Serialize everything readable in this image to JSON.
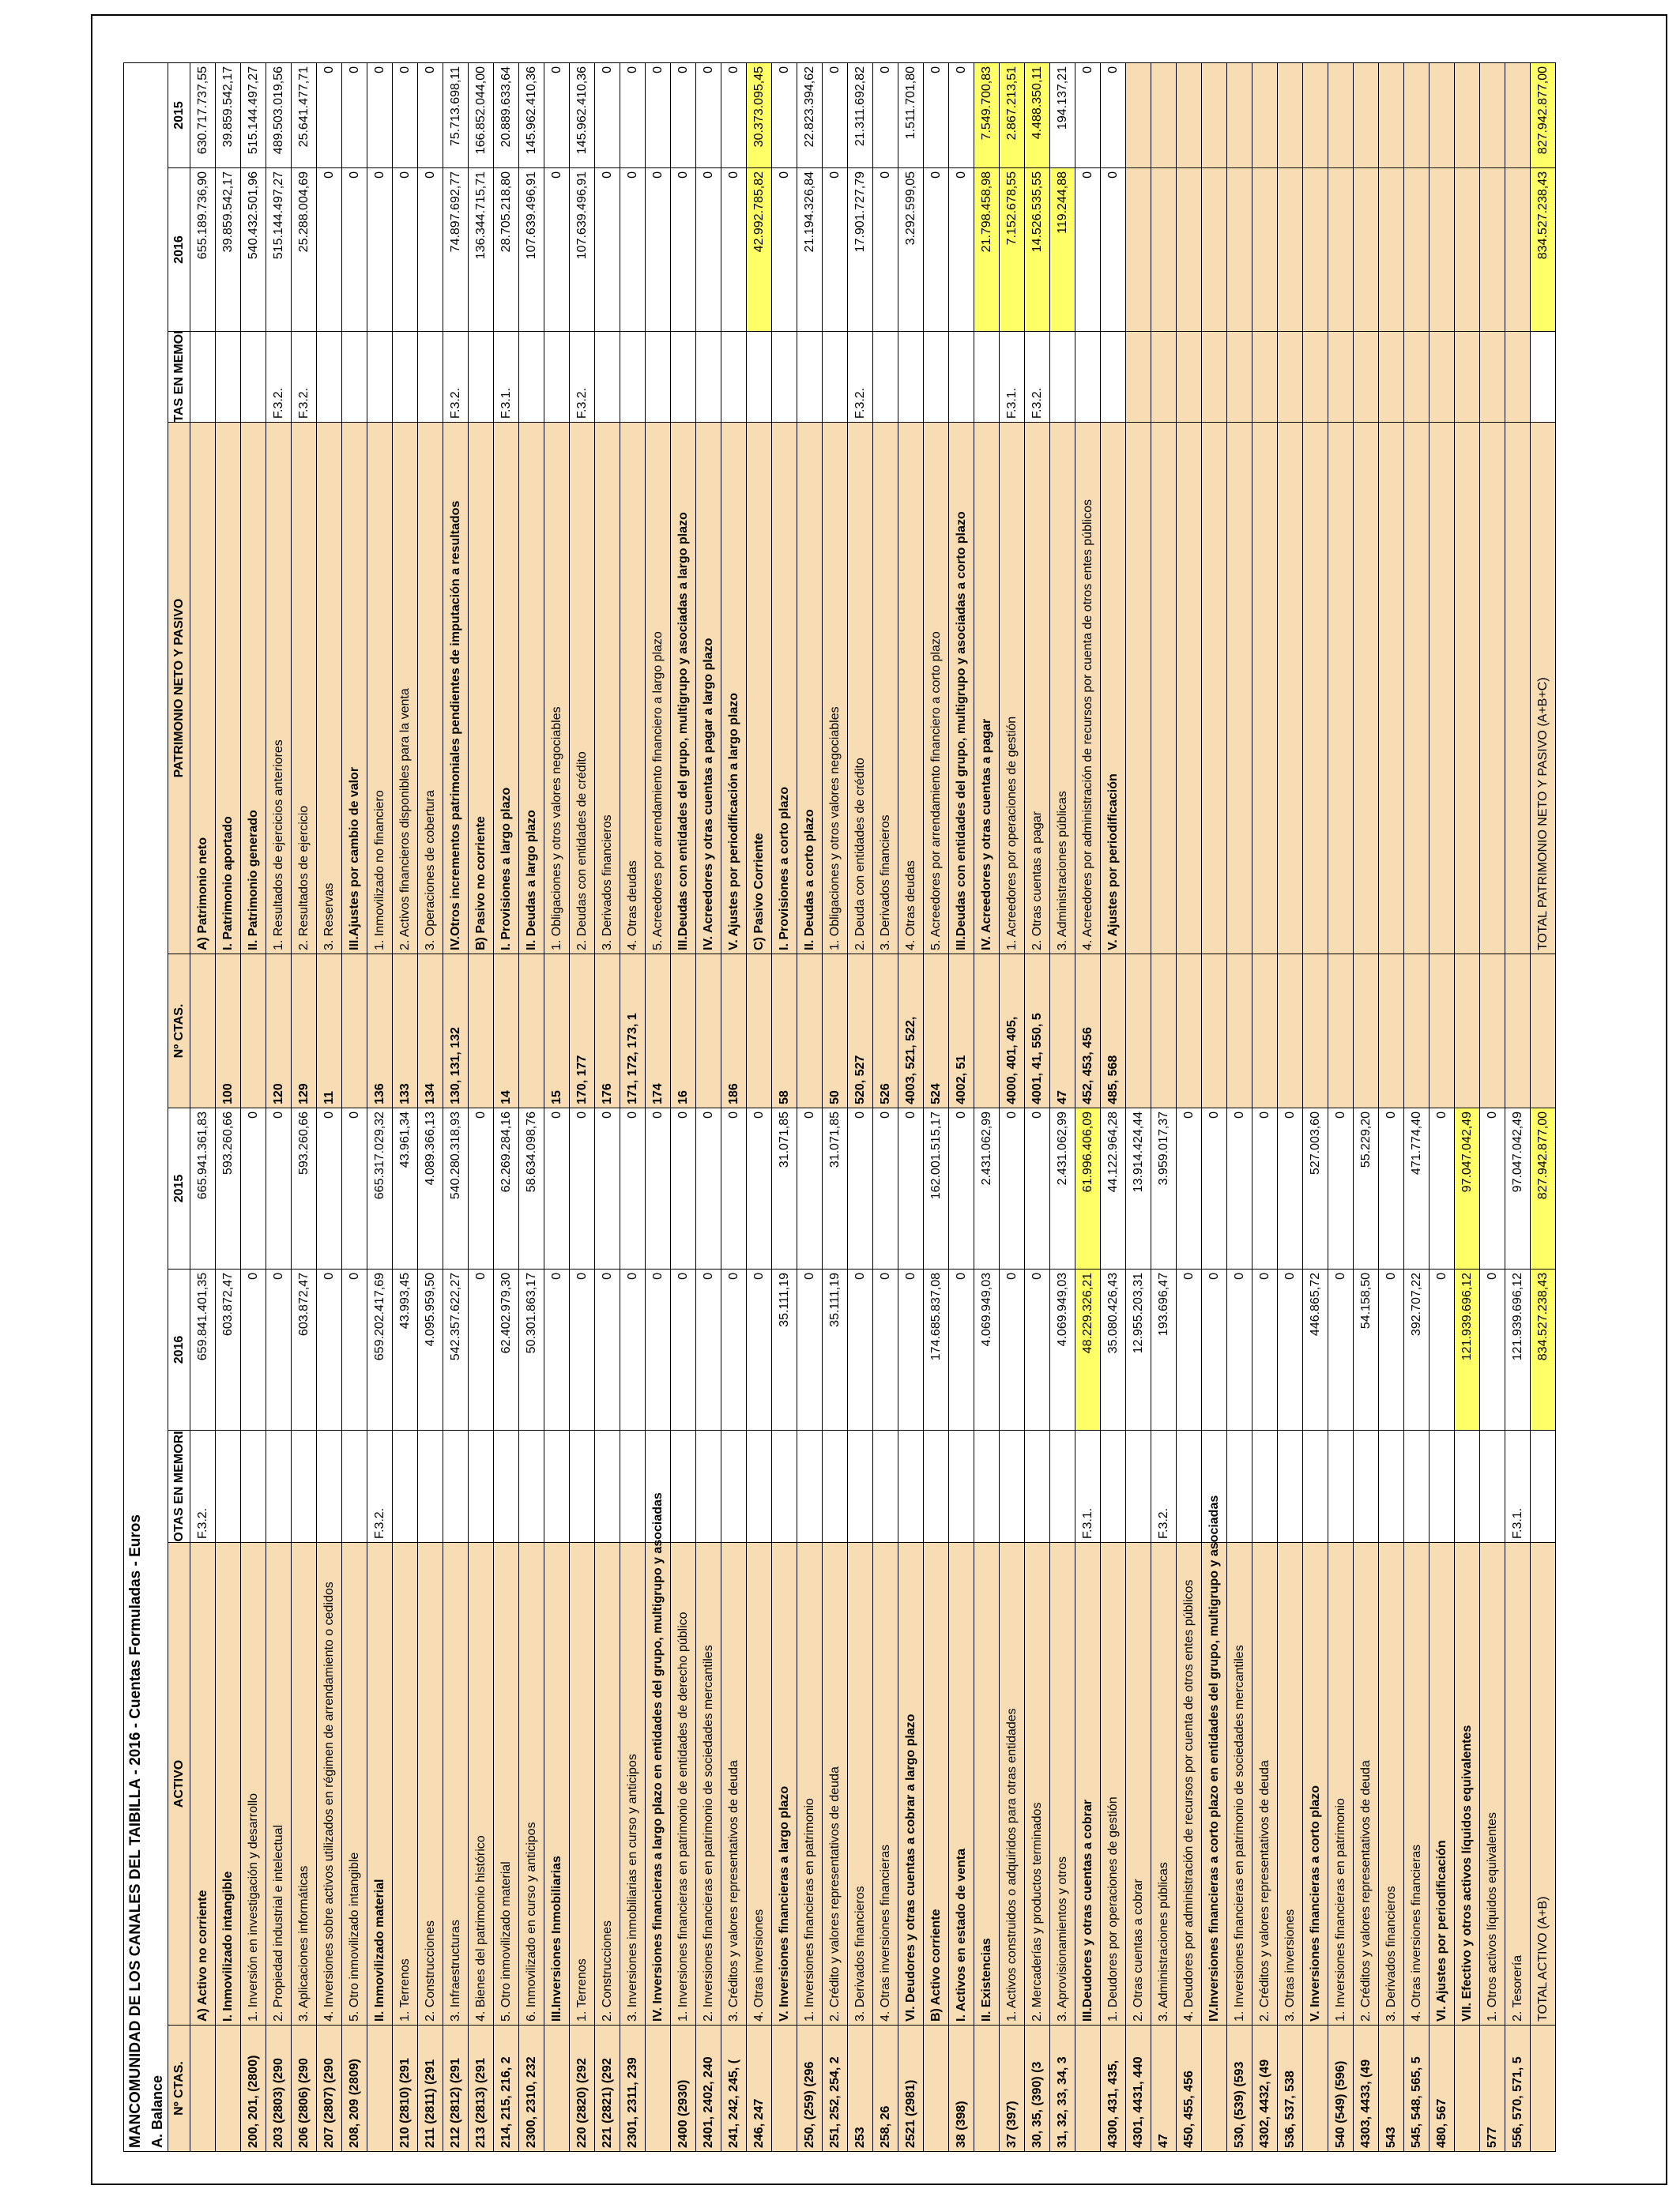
{
  "title": "MANCOMUNIDAD DE LOS CANALES DEL TAIBILLA - 2016 - Cuentas Formuladas - Euros",
  "subtitle": "A. Balance",
  "headers": {
    "activo": [
      "Nº CTAS.",
      "ACTIVO",
      "NOTAS EN MEMORIA",
      "2016",
      "2015"
    ],
    "pasivo": [
      "Nº CTAS.",
      "PATRIMONIO NETO Y PASIVO",
      "NOTAS EN MEMORIA",
      "2016",
      "2015"
    ]
  },
  "highlight_color": "#ffff66",
  "fill_color": "#f7dcb4",
  "rows": [
    {
      "activo": {
        "d": "A) Activo no corriente",
        "n": "F.3.2.",
        "a": "659.841.401,35",
        "b": "665.941.361,83",
        "bold": true
      },
      "pasivo": {
        "d": "A) Patrimonio neto",
        "a": "655.189.736,90",
        "b": "630.717.737,55",
        "bold": true
      }
    },
    {
      "activo": {
        "d": "I. Inmovilizado intangible",
        "a": "603.872,47",
        "b": "593.260,66",
        "bold": true
      },
      "pasivo": {
        "c": "100",
        "d": "I. Patrimonio aportado",
        "a": "39.859.542,17",
        "b": "39.859.542,17",
        "bold": true
      }
    },
    {
      "activo": {
        "c": "200, 201, (2800)",
        "d": "1. Inversión en investigación y desarrollo",
        "a": "0",
        "b": "0"
      },
      "pasivo": {
        "d": "II. Patrimonio generado",
        "a": "540.432.501,96",
        "b": "515.144.497,27",
        "bold": true
      }
    },
    {
      "activo": {
        "c": "203 (2803) (290",
        "d": "2. Propiedad industrial e intelectual",
        "a": "0",
        "b": "0"
      },
      "pasivo": {
        "c": "120",
        "d": "1. Resultados de ejercicios anteriores",
        "n": "F.3.2.",
        "a": "515.144.497,27",
        "b": "489.503.019,56"
      }
    },
    {
      "activo": {
        "c": "206 (2806) (290",
        "d": "3. Aplicaciones informáticas",
        "a": "603.872,47",
        "b": "593.260,66"
      },
      "pasivo": {
        "c": "129",
        "d": "2. Resultados de ejercicio",
        "n": "F.3.2.",
        "a": "25.288.004,69",
        "b": "25.641.477,71"
      }
    },
    {
      "activo": {
        "c": "207 (2807) (290",
        "d": "4. Inversiones sobre activos utilizados en régimen de arrendamiento o cedidos",
        "a": "0",
        "b": "0"
      },
      "pasivo": {
        "c": "11",
        "d": "3. Reservas",
        "a": "0",
        "b": "0"
      }
    },
    {
      "activo": {
        "c": "208, 209 (2809)",
        "d": "5. Otro inmovilizado intangible",
        "a": "0",
        "b": "0"
      },
      "pasivo": {
        "d": "III.Ajustes por cambio de valor",
        "a": "0",
        "b": "0",
        "bold": true
      }
    },
    {
      "activo": {
        "d": "II. Inmovilizado material",
        "n": "F.3.2.",
        "a": "659.202.417,69",
        "b": "665.317.029,32",
        "bold": true
      },
      "pasivo": {
        "c": "136",
        "d": "1. Inmovilizado no financiero",
        "a": "0",
        "b": "0"
      }
    },
    {
      "activo": {
        "c": "210 (2810) (291",
        "d": "1. Terrenos",
        "a": "43.993,45",
        "b": "43.961,34"
      },
      "pasivo": {
        "c": "133",
        "d": "2. Activos financieros disponibles para la venta",
        "a": "0",
        "b": "0"
      }
    },
    {
      "activo": {
        "c": "211 (2811) (291",
        "d": "2. Construcciones",
        "a": "4.095.959,50",
        "b": "4.089.366,13"
      },
      "pasivo": {
        "c": "134",
        "d": "3. Operaciones de cobertura",
        "a": "0",
        "b": "0"
      }
    },
    {
      "activo": {
        "c": "212 (2812) (291",
        "d": "3. Infraestructuras",
        "a": "542.357.622,27",
        "b": "540.280.318,93"
      },
      "pasivo": {
        "c": "130, 131, 132",
        "d": "IV.Otros incrementos patrimoniales pendientes de imputación a resultados",
        "n": "F.3.2.",
        "a": "74.897.692,77",
        "b": "75.713.698,11",
        "bold": true
      }
    },
    {
      "activo": {
        "c": "213 (2813) (291",
        "d": "4. Bienes del patrimonio histórico",
        "a": "0",
        "b": "0"
      },
      "pasivo": {
        "d": "B) Pasivo no corriente",
        "a": "136.344.715,71",
        "b": "166.852.044,00",
        "bold": true
      }
    },
    {
      "activo": {
        "c": "214, 215, 216, 2",
        "d": "5. Otro inmovilizado material",
        "a": "62.402.979,30",
        "b": "62.269.284,16"
      },
      "pasivo": {
        "c": "14",
        "d": "I. Provisiones a largo plazo",
        "n": "F.3.1.",
        "a": "28.705.218,80",
        "b": "20.889.633,64",
        "bold": true
      }
    },
    {
      "activo": {
        "c": "2300, 2310, 232",
        "d": "6. Inmovilizado en curso y anticipos",
        "a": "50.301.863,17",
        "b": "58.634.098,76"
      },
      "pasivo": {
        "d": "II. Deudas a largo plazo",
        "a": "107.639.496,91",
        "b": "145.962.410,36",
        "bold": true
      }
    },
    {
      "activo": {
        "d": "III.Inversiones Inmobiliarias",
        "a": "0",
        "b": "0",
        "bold": true
      },
      "pasivo": {
        "c": "15",
        "d": "1. Obligaciones y otros valores negociables",
        "a": "0",
        "b": "0"
      }
    },
    {
      "activo": {
        "c": "220 (2820) (292",
        "d": "1. Terrenos",
        "a": "0",
        "b": "0"
      },
      "pasivo": {
        "c": "170, 177",
        "d": "2. Deudas con entidades de crédito",
        "n": "F.3.2.",
        "a": "107.639.496,91",
        "b": "145.962.410,36"
      }
    },
    {
      "activo": {
        "c": "221 (2821) (292",
        "d": "2. Construcciones",
        "a": "0",
        "b": "0"
      },
      "pasivo": {
        "c": "176",
        "d": "3. Derivados financieros",
        "a": "0",
        "b": "0"
      }
    },
    {
      "activo": {
        "c": "2301, 2311, 239",
        "d": "3. Inversiones inmobiliarias en curso y anticipos",
        "a": "0",
        "b": "0"
      },
      "pasivo": {
        "c": "171, 172, 173, 1",
        "d": "4. Otras deudas",
        "a": "0",
        "b": "0"
      }
    },
    {
      "activo": {
        "d": "IV. Inversiones financieras a largo plazo en entidades del grupo, multigrupo y asociadas",
        "a": "0",
        "b": "0",
        "bold": true
      },
      "pasivo": {
        "c": "174",
        "d": "5. Acreedores por arrendamiento financiero a largo plazo",
        "a": "0",
        "b": "0"
      }
    },
    {
      "activo": {
        "c": "2400 (2930)",
        "d": "1. Inversiones financieras en patrimonio de entidades de derecho público",
        "a": "0",
        "b": "0"
      },
      "pasivo": {
        "c": "16",
        "d": "III.Deudas con entidades del grupo, multigrupo y asociadas a largo plazo",
        "a": "0",
        "b": "0",
        "bold": true
      }
    },
    {
      "activo": {
        "c": "2401, 2402, 240",
        "d": "2. Inversiones financieras en patrimonio de sociedades mercantiles",
        "a": "0",
        "b": "0"
      },
      "pasivo": {
        "d": "IV. Acreedores y otras cuentas a pagar a largo plazo",
        "a": "0",
        "b": "0",
        "bold": true
      }
    },
    {
      "activo": {
        "c": "241, 242, 245, (",
        "d": "3. Créditos y valores representativos de deuda",
        "a": "0",
        "b": "0"
      },
      "pasivo": {
        "c": "186",
        "d": "V. Ajustes por periodificación a largo plazo",
        "a": "0",
        "b": "0",
        "bold": true
      }
    },
    {
      "activo": {
        "c": "246, 247",
        "d": "4. Otras inversiones",
        "a": "0",
        "b": "0"
      },
      "pasivo": {
        "d": "C) Pasivo Corriente",
        "a": "42.992.785,82",
        "b": "30.373.095,45",
        "bold": true,
        "hl": [
          "a",
          "b"
        ]
      }
    },
    {
      "activo": {
        "d": "V. Inversiones financieras a largo plazo",
        "a": "35.111,19",
        "b": "31.071,85",
        "bold": true
      },
      "pasivo": {
        "c": "58",
        "d": "I. Provisiones a corto plazo",
        "a": "0",
        "b": "0",
        "bold": true
      }
    },
    {
      "activo": {
        "c": "250, (259) (296",
        "d": "1. Inversiones financieras en patrimonio",
        "a": "0",
        "b": "0"
      },
      "pasivo": {
        "d": "II. Deudas a corto plazo",
        "a": "21.194.326,84",
        "b": "22.823.394,62",
        "bold": true
      }
    },
    {
      "activo": {
        "c": "251, 252, 254, 2",
        "d": "2. Crédito y valores representativos de deuda",
        "a": "35.111,19",
        "b": "31.071,85"
      },
      "pasivo": {
        "c": "50",
        "d": "1. Obligaciones y otros valores negociables",
        "a": "0",
        "b": "0"
      }
    },
    {
      "activo": {
        "c": "253",
        "d": "3. Derivados financieros",
        "a": "0",
        "b": "0"
      },
      "pasivo": {
        "c": "520, 527",
        "d": "2. Deuda con entidades de crédito",
        "n": "F.3.2.",
        "a": "17.901.727,79",
        "b": "21.311.692,82"
      }
    },
    {
      "activo": {
        "c": "258, 26",
        "d": "4. Otras inversiones financieras",
        "a": "0",
        "b": "0"
      },
      "pasivo": {
        "c": "526",
        "d": "3. Derivados financieros",
        "a": "0",
        "b": "0"
      }
    },
    {
      "activo": {
        "c": "2521 (2981)",
        "d": "VI. Deudores y otras cuentas a cobrar a largo plazo",
        "a": "0",
        "b": "0",
        "bold": true
      },
      "pasivo": {
        "c": "4003, 521, 522,",
        "d": "4. Otras deudas",
        "a": "3.292.599,05",
        "b": "1.511.701,80"
      }
    },
    {
      "activo": {
        "d": "B) Activo corriente",
        "a": "174.685.837,08",
        "b": "162.001.515,17",
        "bold": true
      },
      "pasivo": {
        "c": "524",
        "d": "5. Acreedores por arrendamiento financiero a corto plazo",
        "a": "0",
        "b": "0"
      }
    },
    {
      "activo": {
        "c": "38 (398)",
        "d": "I. Activos en estado de venta",
        "a": "0",
        "b": "0",
        "bold": true
      },
      "pasivo": {
        "c": "4002, 51",
        "d": "III.Deudas con entidades del grupo, multigrupo y asociadas a corto plazo",
        "a": "0",
        "b": "0",
        "bold": true
      }
    },
    {
      "activo": {
        "d": "II. Existencias",
        "a": "4.069.949,03",
        "b": "2.431.062,99",
        "bold": true
      },
      "pasivo": {
        "d": "IV. Acreedores y otras cuentas a pagar",
        "a": "21.798.458,98",
        "b": "7.549.700,83",
        "bold": true,
        "hl": [
          "a",
          "b"
        ]
      }
    },
    {
      "activo": {
        "c": "37 (397)",
        "d": "1. Activos construidos o adquiridos para otras entidades",
        "a": "0",
        "b": "0"
      },
      "pasivo": {
        "c": "4000, 401, 405,",
        "d": "1. Acreedores por operaciones de gestión",
        "n": "F.3.1.",
        "a": "7.152.678,55",
        "b": "2.867.213,51",
        "hl": [
          "a",
          "b"
        ]
      }
    },
    {
      "activo": {
        "c": "30, 35, (390) (3",
        "d": "2. Mercaderías y productos terminados",
        "a": "0",
        "b": "0"
      },
      "pasivo": {
        "c": "4001, 41, 550, 5",
        "d": "2. Otras cuentas a pagar",
        "n": "F.3.2.",
        "a": "14.526.535,55",
        "b": "4.488.350,11",
        "hl": [
          "a",
          "b"
        ]
      }
    },
    {
      "activo": {
        "c": "31, 32, 33, 34, 3",
        "d": "3. Aprovisionamientos y otros",
        "a": "4.069.949,03",
        "b": "2.431.062,99"
      },
      "pasivo": {
        "c": "47",
        "d": "3. Administraciones públicas",
        "a": "119.244,88",
        "b": "194.137,21",
        "hl": [
          "a"
        ]
      }
    },
    {
      "activo": {
        "d": "III.Deudores y otras cuentas a cobrar",
        "n": "F.3.1.",
        "a": "48.229.326,21",
        "b": "61.996.406,09",
        "bold": true,
        "hl": [
          "a",
          "b"
        ]
      },
      "pasivo": {
        "c": "452, 453, 456",
        "d": "4. Acreedores por administración de recursos por cuenta de otros entes públicos",
        "a": "0",
        "b": "0"
      }
    },
    {
      "activo": {
        "c": "4300, 431, 435,",
        "d": "1. Deudores por operaciones de gestión",
        "a": "35.080.426,43",
        "b": "44.122.964,28"
      },
      "pasivo": {
        "c": "485, 568",
        "d": "V. Ajustes por periodificación",
        "a": "0",
        "b": "0",
        "bold": true
      }
    },
    {
      "activo": {
        "c": "4301, 4431, 440",
        "d": "2. Otras cuentas a cobrar",
        "a": "12.955.203,31",
        "b": "13.914.424,44"
      }
    },
    {
      "activo": {
        "c": "47",
        "d": "3. Administraciones públicas",
        "n": "F.3.2.",
        "a": "193.696,47",
        "b": "3.959.017,37"
      }
    },
    {
      "activo": {
        "c": "450, 455, 456",
        "d": "4. Deudores por administración de recursos por cuenta de otros entes públicos",
        "a": "0",
        "b": "0"
      }
    },
    {
      "activo": {
        "d": "IV.Inversiones financieras a corto plazo en entidades del grupo, multigrupo y asociadas",
        "a": "0",
        "b": "0",
        "bold": true
      }
    },
    {
      "activo": {
        "c": "530, (539) (593",
        "d": "1. Inversiones financieras en patrimonio de sociedades mercantiles",
        "a": "0",
        "b": "0"
      }
    },
    {
      "activo": {
        "c": "4302, 4432, (49",
        "d": "2. Créditos y valores representativos de deuda",
        "a": "0",
        "b": "0"
      }
    },
    {
      "activo": {
        "c": "536, 537, 538",
        "d": "3. Otras inversiones",
        "a": "0",
        "b": "0"
      }
    },
    {
      "activo": {
        "d": "V. Inversiones financieras a corto plazo",
        "a": "446.865,72",
        "b": "527.003,60",
        "bold": true
      }
    },
    {
      "activo": {
        "c": "540 (549) (596)",
        "d": "1. Inversiones financieras en patrimonio",
        "a": "0",
        "b": "0"
      }
    },
    {
      "activo": {
        "c": "4303, 4433, (49",
        "d": "2. Créditos y valores representativos de deuda",
        "a": "54.158,50",
        "b": "55.229,20"
      }
    },
    {
      "activo": {
        "c": "543",
        "d": "3. Derivados financieros",
        "a": "0",
        "b": "0"
      }
    },
    {
      "activo": {
        "c": "545, 548, 565, 5",
        "d": "4. Otras inversiones financieras",
        "a": "392.707,22",
        "b": "471.774,40"
      }
    },
    {
      "activo": {
        "c": "480, 567",
        "d": "VI. Ajustes por periodificación",
        "a": "0",
        "b": "0",
        "bold": true
      }
    },
    {
      "activo": {
        "d": "VII. Efectivo y otros activos líquidos equivalentes",
        "a": "121.939.696,12",
        "b": "97.047.042,49",
        "bold": true,
        "hl": [
          "a",
          "b"
        ]
      }
    },
    {
      "activo": {
        "c": "577",
        "d": "1. Otros activos líquidos equivalentes",
        "a": "0",
        "b": "0"
      }
    },
    {
      "activo": {
        "c": "556, 570, 571, 5",
        "d": "2. Tesorería",
        "n": "F.3.1.",
        "a": "121.939.696,12",
        "b": "97.047.042,49"
      }
    },
    {
      "activo": {
        "d": "TOTAL ACTIVO (A+B)",
        "a": "834.527.238,43",
        "b": "827.942.877,00",
        "hl": [
          "a",
          "b"
        ]
      },
      "pasivo": {
        "d": "TOTAL PATRIMONIO NETO Y PASIVO (A+B+C)",
        "a": "834.527.238,43",
        "b": "827.942.877,00",
        "hl": [
          "a",
          "b"
        ]
      }
    }
  ]
}
